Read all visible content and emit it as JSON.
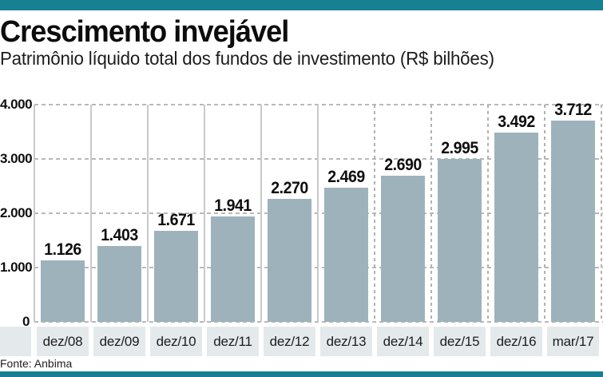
{
  "chart_data": {
    "type": "bar",
    "title": "Crescimento invejável",
    "subtitle": "Patrimônio líquido total dos fundos de investimento (R$ bilhões)",
    "categories": [
      "dez/08",
      "dez/09",
      "dez/10",
      "dez/11",
      "dez/12",
      "dez/13",
      "dez/14",
      "dez/15",
      "dez/16",
      "mar/17"
    ],
    "values": [
      1126,
      1403,
      1671,
      1941,
      2270,
      2469,
      2690,
      2995,
      3492,
      3712
    ],
    "value_labels": [
      "1.126",
      "1.403",
      "1.671",
      "1.941",
      "2.270",
      "2.469",
      "2.690",
      "2.995",
      "3.492",
      "3.712"
    ],
    "xlabel": "",
    "ylabel": "",
    "ylim": [
      0,
      4000
    ],
    "y_ticks": [
      {
        "value": 4000,
        "label": "4.000"
      },
      {
        "value": 3000,
        "label": "3.000"
      },
      {
        "value": 2000,
        "label": "2.000"
      },
      {
        "value": 1000,
        "label": "1.000"
      },
      {
        "value": 0,
        "label": "0"
      }
    ],
    "grid": {
      "horizontal": "dashed",
      "vertical_left_separators": "solid",
      "vertical_right_separators": "dashed"
    },
    "legend": "none",
    "source": "Fonte: Anbima",
    "colors": {
      "accent": "#178092",
      "bar": "#9eb2bb",
      "band": "#e4e9ec",
      "grid": "#b9b9b9",
      "value_text": "#0e0e0e"
    }
  }
}
